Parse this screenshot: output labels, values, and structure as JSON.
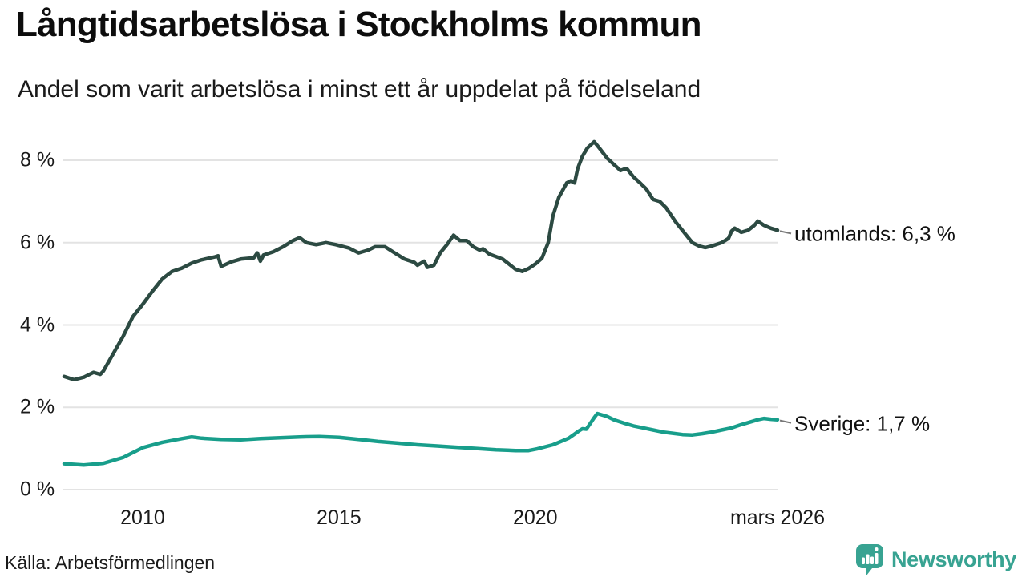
{
  "title": "Långtidsarbetslösa i Stockholms kommun",
  "subtitle": "Andel som varit arbetslösa i minst ett år uppdelat på födelseland",
  "source": "Källa: Arbetsförmedlingen",
  "logo": {
    "text": "Newsworthy",
    "color": "#38a392"
  },
  "colors": {
    "grid": "#e3e3e3",
    "connector": "#777777",
    "utomlands_line": "#2c4a42",
    "sverige_line": "#189e8b"
  },
  "chart_data": {
    "type": "line",
    "title": "Långtidsarbetslösa i Stockholms kommun",
    "subtitle": "Andel som varit arbetslösa i minst ett år uppdelat på födelseland",
    "xlabel": "",
    "ylabel": "",
    "xlim": [
      2008,
      2026.17
    ],
    "ylim": [
      0,
      8
    ],
    "grid": "horizontal",
    "legend_position": "right-end-labels",
    "yticks": [
      {
        "value": 8,
        "label": "8 %"
      },
      {
        "value": 6,
        "label": "6 %"
      },
      {
        "value": 4,
        "label": "4 %"
      },
      {
        "value": 2,
        "label": "2 %"
      },
      {
        "value": 0,
        "label": "0 %"
      }
    ],
    "xticks": [
      {
        "x": 2010,
        "label": "2010"
      },
      {
        "x": 2015,
        "label": "2015"
      },
      {
        "x": 2020,
        "label": "2020"
      },
      {
        "x": 2026.17,
        "label": "mars 2026"
      }
    ],
    "series": [
      {
        "name": "utomlands",
        "end_label": "utomlands: 6,3 %",
        "end_value_display": "6,3 %",
        "color": "#2c4a42",
        "x": [
          2008.0,
          2008.25,
          2008.5,
          2008.75,
          2008.92,
          2009.0,
          2009.25,
          2009.5,
          2009.75,
          2010.0,
          2010.25,
          2010.5,
          2010.75,
          2011.0,
          2011.25,
          2011.5,
          2011.83,
          2011.92,
          2012.0,
          2012.25,
          2012.5,
          2012.83,
          2012.92,
          2013.0,
          2013.08,
          2013.33,
          2013.58,
          2013.83,
          2014.0,
          2014.17,
          2014.42,
          2014.67,
          2014.92,
          2015.0,
          2015.25,
          2015.5,
          2015.75,
          2015.92,
          2016.17,
          2016.42,
          2016.67,
          2016.92,
          2017.0,
          2017.17,
          2017.25,
          2017.42,
          2017.58,
          2017.75,
          2017.92,
          2018.08,
          2018.25,
          2018.42,
          2018.58,
          2018.67,
          2018.83,
          2019.0,
          2019.17,
          2019.33,
          2019.5,
          2019.67,
          2019.83,
          2020.0,
          2020.17,
          2020.33,
          2020.45,
          2020.6,
          2020.8,
          2020.9,
          2021.0,
          2021.08,
          2021.2,
          2021.33,
          2021.5,
          2021.67,
          2021.83,
          2022.0,
          2022.17,
          2022.25,
          2022.33,
          2022.5,
          2022.67,
          2022.83,
          2023.0,
          2023.17,
          2023.33,
          2023.58,
          2023.83,
          2024.0,
          2024.17,
          2024.33,
          2024.5,
          2024.75,
          2024.92,
          2025.0,
          2025.08,
          2025.25,
          2025.42,
          2025.58,
          2025.67,
          2025.83,
          2026.0,
          2026.17
        ],
        "values": [
          2.75,
          2.67,
          2.73,
          2.85,
          2.8,
          2.88,
          3.3,
          3.72,
          4.2,
          4.5,
          4.82,
          5.12,
          5.3,
          5.38,
          5.5,
          5.58,
          5.65,
          5.68,
          5.42,
          5.53,
          5.6,
          5.63,
          5.75,
          5.55,
          5.7,
          5.78,
          5.9,
          6.05,
          6.12,
          6.0,
          5.95,
          6.0,
          5.95,
          5.93,
          5.87,
          5.75,
          5.82,
          5.9,
          5.9,
          5.75,
          5.6,
          5.52,
          5.45,
          5.55,
          5.4,
          5.45,
          5.75,
          5.95,
          6.18,
          6.05,
          6.05,
          5.9,
          5.82,
          5.85,
          5.72,
          5.66,
          5.6,
          5.48,
          5.35,
          5.3,
          5.37,
          5.48,
          5.62,
          6.0,
          6.65,
          7.1,
          7.45,
          7.5,
          7.45,
          7.8,
          8.1,
          8.3,
          8.45,
          8.25,
          8.05,
          7.9,
          7.75,
          7.78,
          7.8,
          7.6,
          7.45,
          7.3,
          7.05,
          7.0,
          6.85,
          6.5,
          6.2,
          6.0,
          5.92,
          5.88,
          5.92,
          6.0,
          6.1,
          6.28,
          6.35,
          6.25,
          6.3,
          6.42,
          6.52,
          6.42,
          6.35,
          6.3
        ]
      },
      {
        "name": "Sverige",
        "end_label": "Sverige: 1,7 %",
        "end_value_display": "1,7 %",
        "color": "#189e8b",
        "x": [
          2008.0,
          2008.5,
          2009.0,
          2009.5,
          2010.0,
          2010.5,
          2011.0,
          2011.25,
          2011.5,
          2012.0,
          2012.5,
          2013.0,
          2013.5,
          2014.0,
          2014.5,
          2015.0,
          2015.5,
          2016.0,
          2016.5,
          2017.0,
          2017.5,
          2018.0,
          2018.5,
          2019.0,
          2019.5,
          2019.83,
          2020.05,
          2020.45,
          2020.65,
          2020.85,
          2021.0,
          2021.1,
          2021.2,
          2021.3,
          2021.38,
          2021.5,
          2021.58,
          2021.83,
          2022.0,
          2022.25,
          2022.5,
          2022.75,
          2023.0,
          2023.25,
          2023.5,
          2023.75,
          2024.0,
          2024.25,
          2024.5,
          2024.75,
          2025.0,
          2025.25,
          2025.5,
          2025.67,
          2025.83,
          2026.0,
          2026.17
        ],
        "values": [
          0.63,
          0.6,
          0.64,
          0.78,
          1.02,
          1.15,
          1.24,
          1.28,
          1.25,
          1.22,
          1.21,
          1.24,
          1.26,
          1.28,
          1.29,
          1.27,
          1.22,
          1.17,
          1.13,
          1.09,
          1.06,
          1.03,
          1.0,
          0.97,
          0.95,
          0.95,
          0.99,
          1.09,
          1.17,
          1.25,
          1.35,
          1.42,
          1.48,
          1.47,
          1.58,
          1.75,
          1.85,
          1.78,
          1.7,
          1.62,
          1.55,
          1.5,
          1.45,
          1.4,
          1.37,
          1.34,
          1.33,
          1.36,
          1.4,
          1.45,
          1.5,
          1.58,
          1.65,
          1.7,
          1.73,
          1.71,
          1.7
        ]
      }
    ]
  }
}
